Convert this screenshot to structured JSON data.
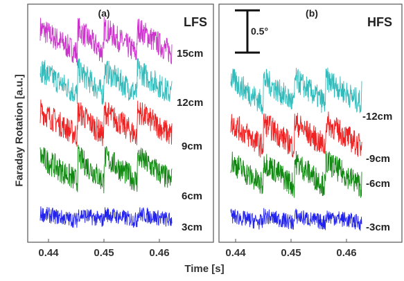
{
  "chart_data": [
    {
      "type": "line",
      "panel_label": "(a)",
      "side_label": "LFS",
      "xlabel": "Time [s]",
      "ylabel": "Faraday Rotation [a.u.]",
      "xlim": [
        0.437,
        0.466
      ],
      "xticks": [
        "0.44",
        "0.45",
        "0.46"
      ],
      "series": [
        {
          "name": "15cm",
          "color": "#cc33cc",
          "offset": 4.1
        },
        {
          "name": "12cm",
          "color": "#33bbbb",
          "offset": 3.2
        },
        {
          "name": "9cm",
          "color": "#ee2222",
          "offset": 2.3
        },
        {
          "name": "6cm",
          "color": "#118811",
          "offset": 1.3
        },
        {
          "name": "3cm",
          "color": "#2222ee",
          "offset": 0.25
        }
      ]
    },
    {
      "type": "line",
      "panel_label": "(b)",
      "side_label": "HFS",
      "scale_bar_label": "0.5°",
      "xlim": [
        0.437,
        0.468
      ],
      "xticks": [
        "0.44",
        "0.45",
        "0.46"
      ],
      "series": [
        {
          "name": "-12cm",
          "color": "#33bbbb",
          "offset": 3.0
        },
        {
          "name": "-9cm",
          "color": "#ee2222",
          "offset": 2.05
        },
        {
          "name": "-6cm",
          "color": "#118811",
          "offset": 1.2
        },
        {
          "name": "-3cm",
          "color": "#2222ee",
          "offset": 0.2
        }
      ]
    }
  ],
  "axis_labels": {
    "x": "Time [s]",
    "y": "Faraday Rotation [a.u.]"
  }
}
